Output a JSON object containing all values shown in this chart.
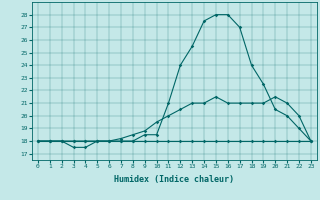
{
  "title": "",
  "xlabel": "Humidex (Indice chaleur)",
  "background_color": "#c4e8e8",
  "line_color": "#006666",
  "x": [
    0,
    1,
    2,
    3,
    4,
    5,
    6,
    7,
    8,
    9,
    10,
    11,
    12,
    13,
    14,
    15,
    16,
    17,
    18,
    19,
    20,
    21,
    22,
    23
  ],
  "line1": [
    18,
    18,
    18,
    17.5,
    17.5,
    18,
    18,
    18,
    18,
    18.5,
    18.5,
    21,
    24,
    25.5,
    27.5,
    28,
    28,
    27,
    24,
    22.5,
    20.5,
    20,
    19,
    18
  ],
  "line2": [
    18,
    18,
    18,
    18,
    18,
    18,
    18,
    18.2,
    18.5,
    18.8,
    19.5,
    20,
    20.5,
    21,
    21,
    21.5,
    21,
    21,
    21,
    21,
    21.5,
    21,
    20,
    18
  ],
  "line3": [
    18,
    18,
    18,
    18,
    18,
    18,
    18,
    18,
    18,
    18,
    18,
    18,
    18,
    18,
    18,
    18,
    18,
    18,
    18,
    18,
    18,
    18,
    18,
    18
  ],
  "ylim": [
    16.5,
    29
  ],
  "yticks": [
    17,
    18,
    19,
    20,
    21,
    22,
    23,
    24,
    25,
    26,
    27,
    28
  ],
  "xlim": [
    -0.5,
    23.5
  ],
  "xticks": [
    0,
    1,
    2,
    3,
    4,
    5,
    6,
    7,
    8,
    9,
    10,
    11,
    12,
    13,
    14,
    15,
    16,
    17,
    18,
    19,
    20,
    21,
    22,
    23
  ]
}
